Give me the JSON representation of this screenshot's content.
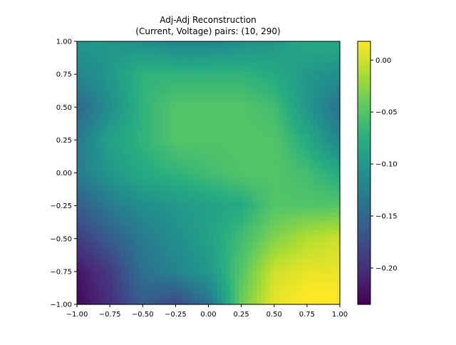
{
  "chart_data": {
    "type": "heatmap",
    "title": "Adj-Adj Reconstruction",
    "subtitle": "(Current, Voltage) pairs: (10, 290)",
    "xlabel": "",
    "ylabel": "",
    "xlim": [
      -1.0,
      1.0
    ],
    "ylim": [
      -1.0,
      1.0
    ],
    "x_ticks": [
      "−1.00",
      "−0.75",
      "−0.50",
      "−0.25",
      "0.00",
      "0.25",
      "0.50",
      "0.75",
      "1.00"
    ],
    "y_ticks": [
      "−1.00",
      "−0.75",
      "−0.50",
      "−0.25",
      "0.00",
      "0.25",
      "0.50",
      "0.75",
      "1.00"
    ],
    "colormap": "viridis",
    "colorbar": {
      "vmin": -0.235,
      "vmax": 0.018,
      "tick_values": [
        0.0,
        -0.05,
        -0.1,
        -0.15,
        -0.2
      ],
      "tick_labels": [
        "0.00",
        "−0.05",
        "−0.10",
        "−0.15",
        "−0.20"
      ]
    },
    "grid": false,
    "grid_note": "approximate field values on a 9x9 grid; rows from y=1.00 (top) to y=-1.00 (bottom), columns from x=-1.00 to x=1.00",
    "z": [
      [
        -0.1,
        -0.1,
        -0.11,
        -0.12,
        -0.12,
        -0.11,
        -0.1,
        -0.08,
        -0.08
      ],
      [
        -0.12,
        -0.1,
        -0.07,
        -0.07,
        -0.07,
        -0.07,
        -0.08,
        -0.1,
        -0.11
      ],
      [
        -0.15,
        -0.11,
        -0.07,
        -0.05,
        -0.05,
        -0.05,
        -0.06,
        -0.1,
        -0.14
      ],
      [
        -0.13,
        -0.09,
        -0.07,
        -0.05,
        -0.05,
        -0.05,
        -0.05,
        -0.08,
        -0.12
      ],
      [
        -0.13,
        -0.1,
        -0.08,
        -0.07,
        -0.06,
        -0.05,
        -0.05,
        -0.06,
        -0.08
      ],
      [
        -0.16,
        -0.13,
        -0.11,
        -0.1,
        -0.09,
        -0.08,
        -0.05,
        -0.05,
        -0.05
      ],
      [
        -0.19,
        -0.16,
        -0.13,
        -0.11,
        -0.09,
        -0.06,
        -0.03,
        -0.01,
        0.0
      ],
      [
        -0.22,
        -0.19,
        -0.14,
        -0.12,
        -0.1,
        -0.05,
        0.0,
        0.01,
        0.01
      ],
      [
        -0.23,
        -0.2,
        -0.16,
        -0.18,
        -0.14,
        -0.04,
        0.01,
        0.02,
        0.02
      ]
    ]
  }
}
